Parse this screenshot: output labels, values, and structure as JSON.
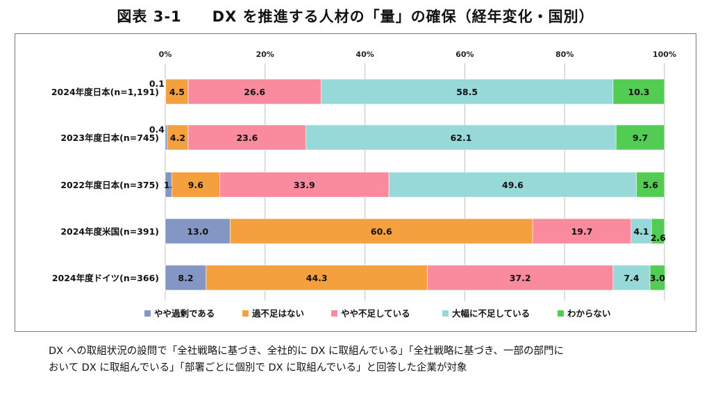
{
  "title": "図表 3-1　　DX を推進する人材の「量」の確保（経年変化・国別）",
  "note_lines": [
    "DX への取組状況の設問で「全社戦略に基づき、全社的に DX に取組んでいる」「全社戦略に基づき、一部の部門に",
    "おいて DX に取組んでいる」「部署ごとに個別で DX に取組んでいる」と回答した企業が対象"
  ],
  "chart_data": {
    "type": "bar",
    "orientation": "horizontal",
    "stacked": true,
    "percent": true,
    "xlim": [
      0,
      100
    ],
    "x_ticks": [
      "0%",
      "20%",
      "40%",
      "60%",
      "80%",
      "100%"
    ],
    "grid": true,
    "legend_position": "bottom",
    "categories": [
      "2024年度日本(n=1,191)",
      "2023年度日本(n=745)",
      "2022年度日本(n=375)",
      "2024年度米国(n=391)",
      "2024年度ドイツ(n=366)"
    ],
    "series": [
      {
        "name": "やや過剰である",
        "color": "#8497c4",
        "values": [
          0.1,
          0.4,
          1.3,
          13.0,
          8.2
        ],
        "labels": [
          "0.1",
          "0.4",
          "1.3",
          "13.0",
          "8.2"
        ]
      },
      {
        "name": "過不足はない",
        "color": "#f5a03f",
        "values": [
          4.5,
          4.2,
          9.6,
          60.6,
          44.3
        ],
        "labels": [
          "4.5",
          "4.2",
          "9.6",
          "60.6",
          "44.3"
        ]
      },
      {
        "name": "やや不足している",
        "color": "#fa8a9e",
        "values": [
          26.6,
          23.6,
          33.9,
          19.7,
          37.2
        ],
        "labels": [
          "26.6",
          "23.6",
          "33.9",
          "19.7",
          "37.2"
        ]
      },
      {
        "name": "大幅に不足している",
        "color": "#97d8d8",
        "values": [
          58.5,
          62.1,
          49.6,
          4.1,
          7.4
        ],
        "labels": [
          "58.5",
          "62.1",
          "49.6",
          "4.1",
          "7.4"
        ]
      },
      {
        "name": "わからない",
        "color": "#52cc52",
        "values": [
          10.3,
          9.7,
          5.6,
          2.6,
          3.0
        ],
        "labels": [
          "10.3",
          "9.7",
          "5.6",
          "2.6",
          "3.0"
        ]
      }
    ]
  }
}
